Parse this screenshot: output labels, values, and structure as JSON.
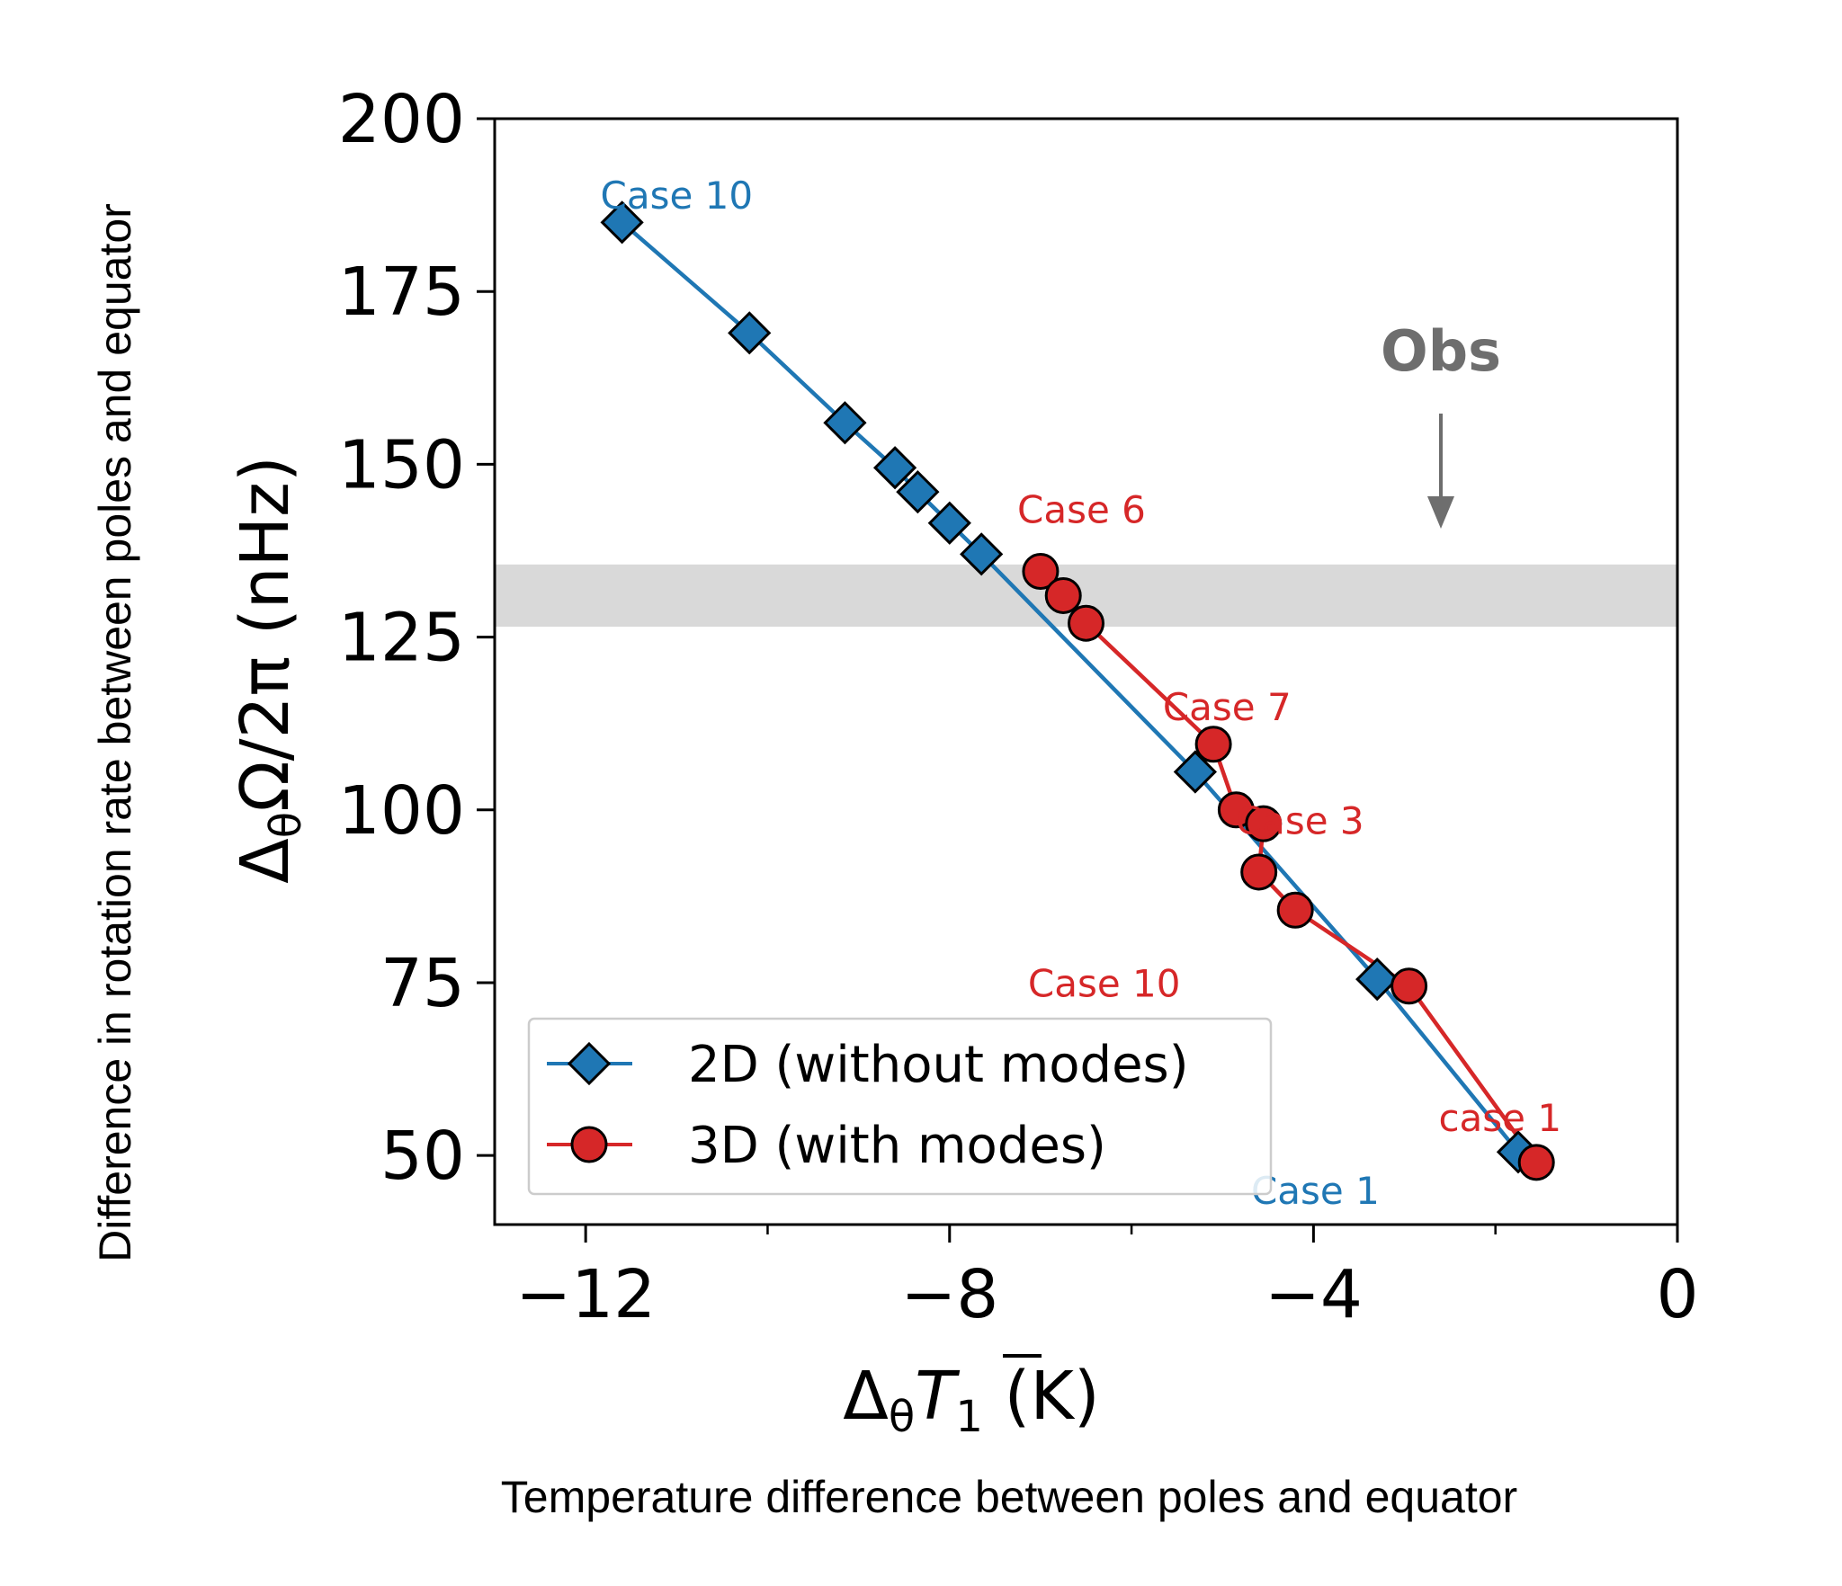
{
  "chart_data": {
    "type": "line",
    "xlabel_main": "Δ",
    "xlabel_sub": "θ",
    "xlabel_var": "T",
    "xlabel_var_sub": "1",
    "xlabel_unit": " (K)",
    "ylabel_main": "Δ",
    "ylabel_sub": "θ",
    "ylabel_rest": "Ω/2π (nHz)",
    "xlim": [
      -13,
      0
    ],
    "ylim": [
      40,
      200
    ],
    "x_ticks": [
      -12,
      -8,
      -4,
      0
    ],
    "x_tick_labels": [
      "−12",
      "−8",
      "−4",
      "0"
    ],
    "y_ticks": [
      50,
      75,
      100,
      125,
      150,
      175,
      200
    ],
    "y_tick_labels": [
      "50",
      "75",
      "100",
      "125",
      "150",
      "175",
      "200"
    ],
    "x_caption": "Temperature difference between  poles and equator",
    "y_caption": "Difference in rotation rate between  poles and equator",
    "obs_band": {
      "ymin": 126.5,
      "ymax": 135.5,
      "label": "Obs",
      "color": "#d9d9d9"
    },
    "legend_position": "lower left",
    "series": [
      {
        "name": "2D (without modes)",
        "color": "#1f77b4",
        "marker": "diamond",
        "x": [
          -11.6,
          -10.2,
          -9.15,
          -8.6,
          -8.35,
          -8.0,
          -7.65,
          -5.3,
          -3.3,
          -1.75
        ],
        "y": [
          185,
          169,
          156,
          149.5,
          146,
          141.5,
          137,
          105.5,
          75.5,
          50.5
        ]
      },
      {
        "name": "3D (with modes)",
        "color": "#d62728",
        "marker": "circle",
        "x": [
          -7.0,
          -6.75,
          -6.5,
          -5.1,
          -4.85,
          -4.55,
          -4.6,
          -4.2,
          -2.95,
          -1.55
        ],
        "y": [
          134.5,
          131,
          127,
          109.5,
          100,
          98,
          91,
          85.5,
          74.5,
          49
        ]
      }
    ],
    "annotations": [
      {
        "text": "Case 10",
        "x": -11.0,
        "y": 187,
        "color": "#1f77b4"
      },
      {
        "text": "Case 6",
        "x": -6.55,
        "y": 141.5,
        "color": "#d62728"
      },
      {
        "text": "Case 7",
        "x": -4.95,
        "y": 113,
        "color": "#d62728"
      },
      {
        "text": "Case 3",
        "x": -4.15,
        "y": 96.5,
        "color": "#d62728"
      },
      {
        "text": "Case 10",
        "x": -6.3,
        "y": 73,
        "color": "#d62728"
      },
      {
        "text": "case 1",
        "x": -1.95,
        "y": 53.5,
        "color": "#d62728"
      },
      {
        "text": "Case 1",
        "x": -3.98,
        "y": 43,
        "color": "#1f77b4"
      }
    ]
  }
}
